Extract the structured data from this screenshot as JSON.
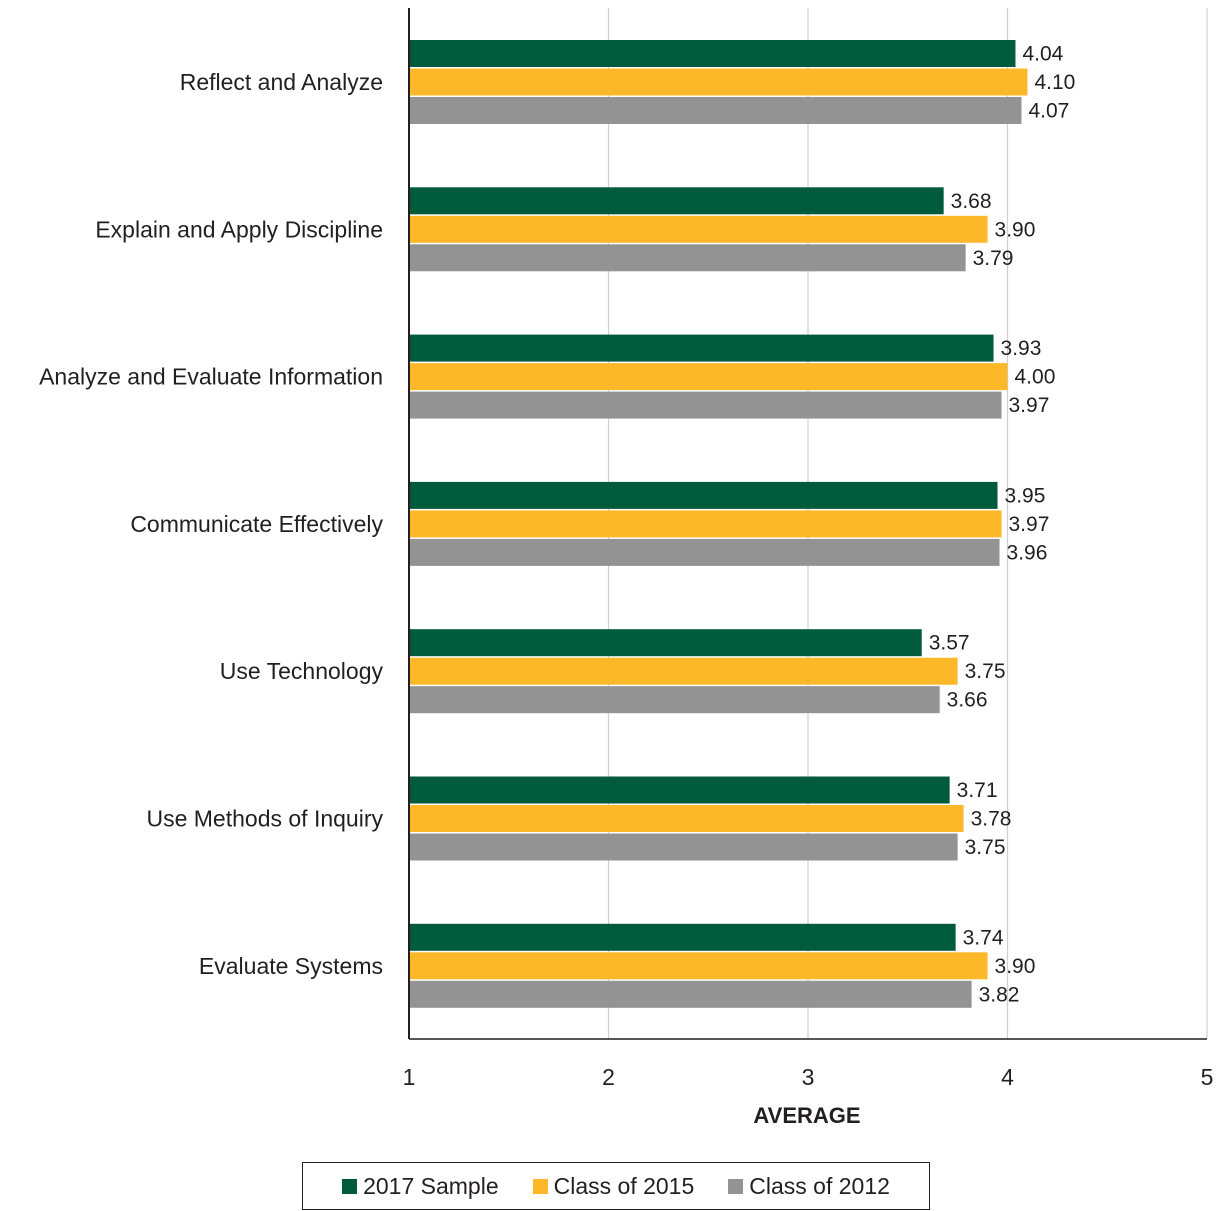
{
  "chart_data": {
    "type": "bar",
    "orientation": "horizontal",
    "categories": [
      "Reflect and Analyze",
      "Explain and Apply Discipline",
      "Analyze and Evaluate Information",
      "Communicate Effectively",
      "Use Technology",
      "Use Methods of Inquiry",
      "Evaluate Systems"
    ],
    "series": [
      {
        "name": "2017 Sample",
        "color": "#005a3c",
        "values": [
          4.04,
          3.68,
          3.93,
          3.95,
          3.57,
          3.71,
          3.74
        ],
        "labels": [
          "4.04",
          "3.68",
          "3.93",
          "3.95",
          "3.57",
          "3.71",
          "3.74"
        ]
      },
      {
        "name": "Class of 2015",
        "color": "#fdb82a",
        "values": [
          4.1,
          3.9,
          4.0,
          3.97,
          3.75,
          3.78,
          3.9
        ],
        "labels": [
          "4.10",
          "3.90",
          "4.00",
          "3.97",
          "3.75",
          "3.78",
          "3.90"
        ]
      },
      {
        "name": "Class of 2012",
        "color": "#939393",
        "values": [
          4.07,
          3.79,
          3.97,
          3.96,
          3.66,
          3.75,
          3.82
        ],
        "labels": [
          "4.07",
          "3.79",
          "3.97",
          "3.96",
          "3.66",
          "3.75",
          "3.82"
        ]
      }
    ],
    "xlabel": "AVERAGE",
    "xlim": [
      1,
      5
    ],
    "xticks": [
      "1",
      "2",
      "3",
      "4",
      "5"
    ],
    "grid": true,
    "legend_position": "bottom"
  }
}
